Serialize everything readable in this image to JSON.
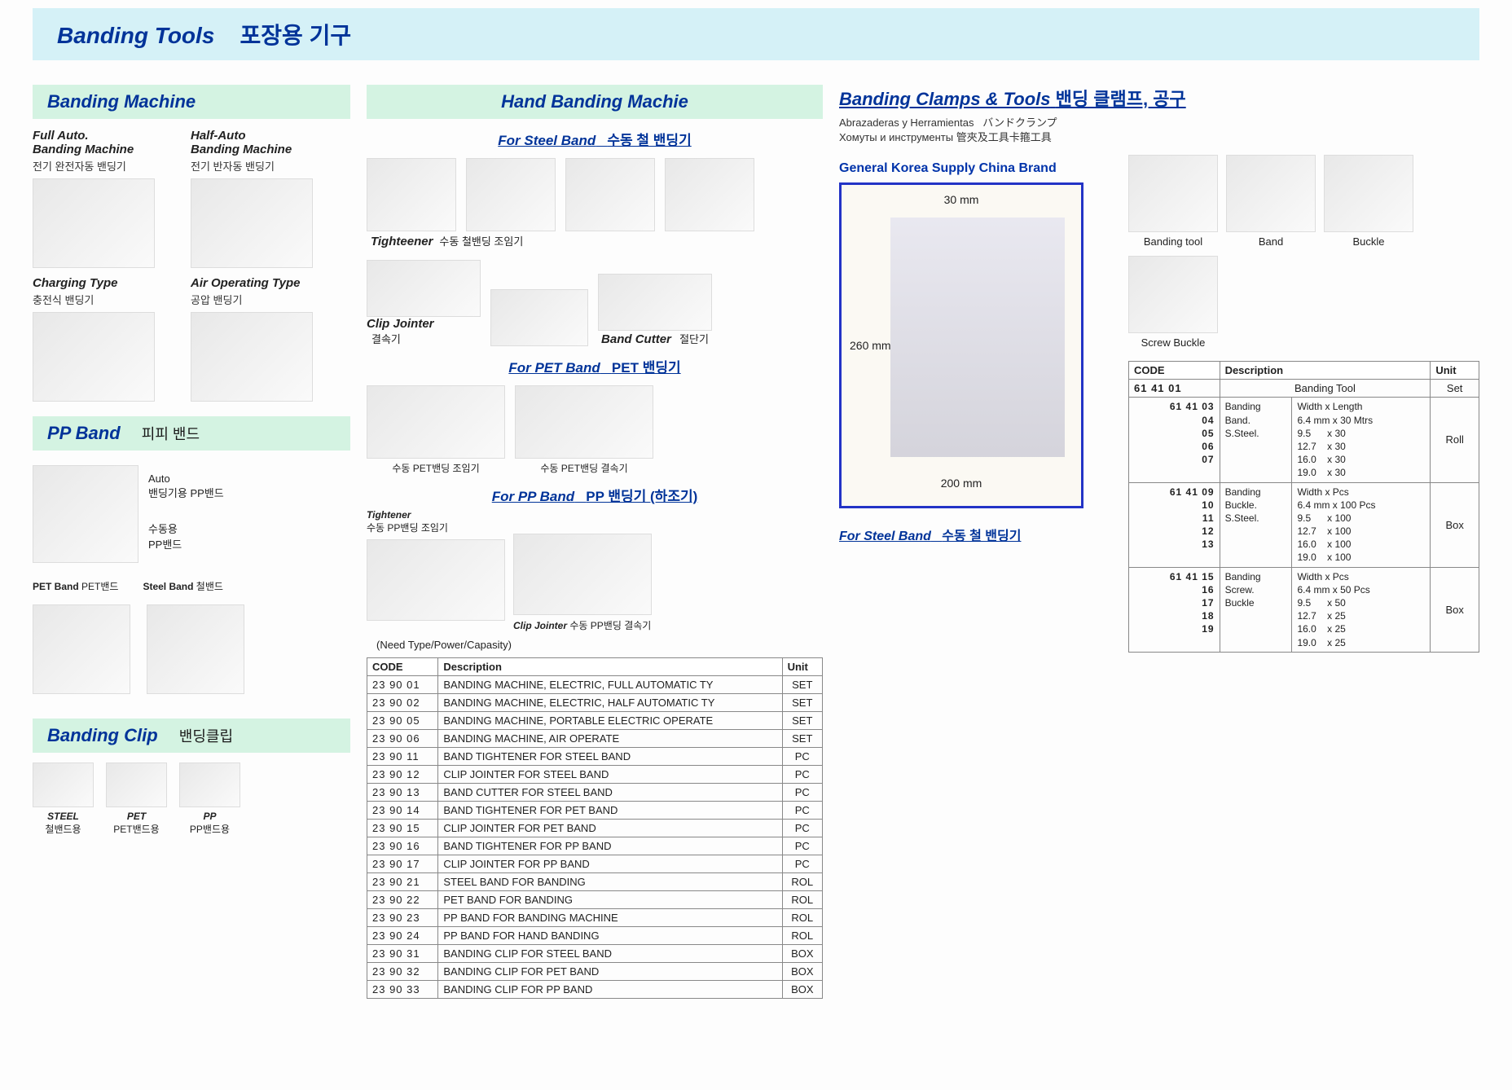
{
  "page_title_en": "Banding Tools",
  "page_title_kr": "포장용 기구",
  "col1": {
    "machine_hdr": "Banding Machine",
    "machines": [
      {
        "en": "Full Auto.\nBanding Machine",
        "kr": "전기 완전자동 밴딩기"
      },
      {
        "en": "Half-Auto\nBanding Machine",
        "kr": "전기 반자동 밴딩기"
      },
      {
        "en": "Charging Type",
        "kr": "충전식 밴딩기"
      },
      {
        "en": "Air Operating Type",
        "kr": "공압 밴딩기"
      }
    ],
    "ppband_hdr_en": "PP Band",
    "ppband_hdr_kr": "피피 밴드",
    "ppband_auto": "Auto\n밴딩기용 PP밴드",
    "ppband_manual": "수동용\nPP밴드",
    "pet_label_en": "PET Band",
    "pet_label_kr": "PET밴드",
    "steel_label_en": "Steel Band",
    "steel_label_kr": "철밴드",
    "clip_hdr_en": "Banding Clip",
    "clip_hdr_kr": "밴딩클립",
    "clips": [
      {
        "en": "STEEL",
        "kr": "철밴드용"
      },
      {
        "en": "PET",
        "kr": "PET밴드용"
      },
      {
        "en": "PP",
        "kr": "PP밴드용"
      }
    ]
  },
  "col2": {
    "hand_hdr": "Hand Banding Machie",
    "steel_sub_en": "For Steel Band",
    "steel_sub_kr": "수동 철 밴딩기",
    "tight_lbl": "Tighteener",
    "tight_kr": "수동 철밴딩 조임기",
    "clipj_lbl": "Clip Jointer",
    "clipj_kr": "결속기",
    "cutter_lbl": "Band Cutter",
    "cutter_kr": "절단기",
    "pet_sub_en": "For PET Band",
    "pet_sub_kr": "PET 밴딩기",
    "pet_tight": "수동 PET밴딩 조임기",
    "pet_join": "수동 PET밴딩 결속기",
    "pp_sub_en": "For PP Band",
    "pp_sub_kr": "PP 밴딩기 (하조기)",
    "pp_tight_lbl": "Tightener",
    "pp_tight_kr": "수동 PP밴딩 조임기",
    "pp_join_lbl": "Clip Jointer",
    "pp_join_kr": "수동 PP밴딩 결속기",
    "need_note": "(Need Type/Power/Capasity)",
    "table": {
      "columns": [
        "CODE",
        "Description",
        "Unit"
      ],
      "groups": [
        [
          [
            "23 90 01",
            "BANDING MACHINE, ELECTRIC, FULL AUTOMATIC TY",
            "SET"
          ],
          [
            "23 90 02",
            "BANDING MACHINE, ELECTRIC, HALF AUTOMATIC TY",
            "SET"
          ],
          [
            "23 90 05",
            "BANDING MACHINE, PORTABLE ELECTRIC OPERATE",
            "SET"
          ],
          [
            "23 90 06",
            "BANDING MACHINE, AIR OPERATE",
            "SET"
          ]
        ],
        [
          [
            "23 90 11",
            "BAND TIGHTENER FOR STEEL BAND",
            "PC"
          ],
          [
            "23 90 12",
            "CLIP JOINTER FOR STEEL BAND",
            "PC"
          ],
          [
            "23 90 13",
            "BAND CUTTER FOR STEEL BAND",
            "PC"
          ]
        ],
        [
          [
            "23 90 14",
            "BAND TIGHTENER FOR PET BAND",
            "PC"
          ],
          [
            "23 90 15",
            "CLIP JOINTER FOR PET BAND",
            "PC"
          ]
        ],
        [
          [
            "23 90 16",
            "BAND TIGHTENER FOR PP BAND",
            "PC"
          ],
          [
            "23 90 17",
            "CLIP JOINTER FOR PP BAND",
            "PC"
          ]
        ],
        [
          [
            "23 90 21",
            "STEEL BAND FOR BANDING",
            "ROL"
          ],
          [
            "23 90 22",
            "PET BAND FOR BANDING",
            "ROL"
          ],
          [
            "23 90 23",
            "PP BAND FOR BANDING MACHINE",
            "ROL"
          ],
          [
            "23 90 24",
            "PP BAND FOR HAND BANDING",
            "ROL"
          ]
        ],
        [
          [
            "23 90 31",
            "BANDING CLIP FOR STEEL BAND",
            "BOX"
          ],
          [
            "23 90 32",
            "BANDING CLIP FOR PET BAND",
            "BOX"
          ],
          [
            "23 90 33",
            "BANDING CLIP FOR PP BAND",
            "BOX"
          ]
        ]
      ]
    }
  },
  "col3": {
    "title_en": "Banding Clamps & Tools",
    "title_kr": "밴딩 클램프, 공구",
    "multi_lang": "Abrazaderas y Herramientas   バンドクランプ\nХомуты и инструменты 管夾及工具卡箍工具",
    "gen_korea": "General Korea Supply China Brand",
    "dim_top": "30 mm",
    "dim_left": "260 mm",
    "dim_bot": "200 mm",
    "steel_en": "For Steel Band",
    "steel_kr": "수동 철 밴딩기",
    "right_tools": [
      "Banding tool",
      "Band",
      "Buckle",
      "Screw Buckle"
    ],
    "table2": {
      "columns": [
        "CODE",
        "Description",
        "Unit"
      ],
      "rows": [
        {
          "codes": "61 41 01",
          "desc": "Banding Tool",
          "sizes": "",
          "unit": "Set"
        },
        {
          "codes": "61 41 03\n04\n05\n06\n07",
          "desc": "Banding\nBand.\nS.Steel.",
          "sizes": "Width x Length\n6.4 mm x 30 Mtrs\n9.5      x 30\n12.7    x 30\n16.0    x 30\n19.0    x 30",
          "unit": "Roll"
        },
        {
          "codes": "61 41 09\n10\n11\n12\n13",
          "desc": "Banding\nBuckle.\nS.Steel.",
          "sizes": "Width x Pcs\n6.4 mm x 100 Pcs\n9.5      x 100\n12.7    x 100\n16.0    x 100\n19.0    x 100",
          "unit": "Box"
        },
        {
          "codes": "61 41 15\n16\n17\n18\n19",
          "desc": "Banding\nScrew.\nBuckle",
          "sizes": "Width x Pcs\n6.4 mm x 50 Pcs\n9.5      x 50\n12.7    x 25\n16.0    x 25\n19.0    x 25",
          "unit": "Box"
        }
      ]
    }
  }
}
